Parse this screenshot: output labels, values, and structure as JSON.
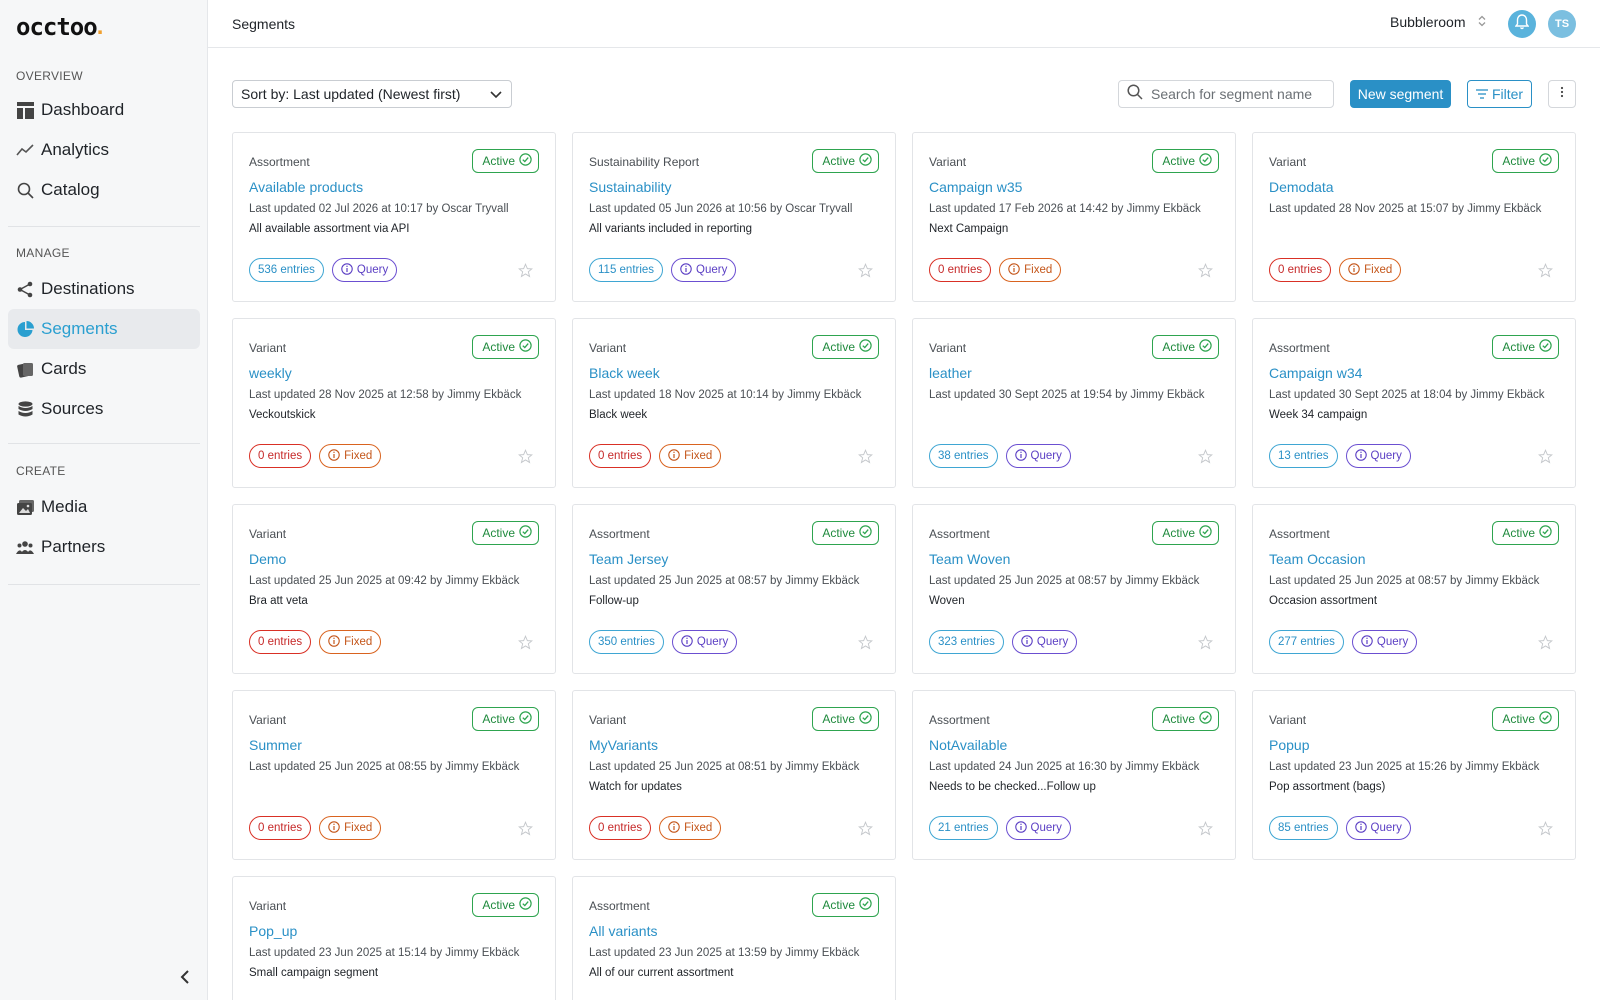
{
  "sidebar": {
    "logo_text": "occtoo",
    "sections": [
      {
        "heading": "OVERVIEW",
        "items": [
          {
            "label": "Dashboard",
            "icon": "dashboard-icon"
          },
          {
            "label": "Analytics",
            "icon": "analytics-icon"
          },
          {
            "label": "Catalog",
            "icon": "search-icon"
          }
        ]
      },
      {
        "heading": "MANAGE",
        "items": [
          {
            "label": "Destinations",
            "icon": "share-icon"
          },
          {
            "label": "Segments",
            "icon": "pie-chart-icon",
            "active": true
          },
          {
            "label": "Cards",
            "icon": "cards-icon"
          },
          {
            "label": "Sources",
            "icon": "database-icon"
          }
        ]
      },
      {
        "heading": "CREATE",
        "items": [
          {
            "label": "Media",
            "icon": "image-icon"
          },
          {
            "label": "Partners",
            "icon": "people-icon"
          }
        ]
      }
    ]
  },
  "header": {
    "title": "Segments",
    "org": "Bubbleroom",
    "avatar_initials": "TS"
  },
  "toolbar": {
    "sort_label": "Sort by: Last updated (Newest first)",
    "search_placeholder": "Search for segment name",
    "new_label": "New segment",
    "filter_label": "Filter"
  },
  "colors": {
    "accent": "#2a90c6",
    "active_green": "#2ea44f",
    "fixed_orange": "#d9631f",
    "query_purple": "#6b4fd1",
    "zero_red": "#d93025"
  },
  "segments": [
    {
      "type": "Assortment",
      "status": "Active",
      "name": "Available products",
      "updated": "Last updated 02 Jul 2026 at 10:17 by Oscar Tryvall",
      "description": "All available assortment via API",
      "entries": "536 entries",
      "kind": "Query"
    },
    {
      "type": "Sustainability Report",
      "status": "Active",
      "name": "Sustainability",
      "updated": "Last updated 05 Jun 2026 at 10:56 by Oscar Tryvall",
      "description": "All variants included in reporting",
      "entries": "115 entries",
      "kind": "Query"
    },
    {
      "type": "Variant",
      "status": "Active",
      "name": "Campaign w35",
      "updated": "Last updated 17 Feb 2026 at 14:42 by Jimmy Ekbäck",
      "description": "Next Campaign",
      "entries": "0 entries",
      "kind": "Fixed"
    },
    {
      "type": "Variant",
      "status": "Active",
      "name": "Demodata",
      "updated": "Last updated 28 Nov 2025 at 15:07 by Jimmy Ekbäck",
      "description": "",
      "entries": "0 entries",
      "kind": "Fixed"
    },
    {
      "type": "Variant",
      "status": "Active",
      "name": "weekly",
      "updated": "Last updated 28 Nov 2025 at 12:58 by Jimmy Ekbäck",
      "description": "Veckoutskick",
      "entries": "0 entries",
      "kind": "Fixed"
    },
    {
      "type": "Variant",
      "status": "Active",
      "name": "Black week",
      "updated": "Last updated 18 Nov 2025 at 10:14 by Jimmy Ekbäck",
      "description": "Black week",
      "entries": "0 entries",
      "kind": "Fixed"
    },
    {
      "type": "Variant",
      "status": "Active",
      "name": "leather",
      "updated": "Last updated 30 Sept 2025 at 19:54 by Jimmy Ekbäck",
      "description": "",
      "entries": "38 entries",
      "kind": "Query"
    },
    {
      "type": "Assortment",
      "status": "Active",
      "name": "Campaign w34",
      "updated": "Last updated 30 Sept 2025 at 18:04 by Jimmy Ekbäck",
      "description": "Week 34 campaign",
      "entries": "13 entries",
      "kind": "Query"
    },
    {
      "type": "Variant",
      "status": "Active",
      "name": "Demo",
      "updated": "Last updated 25 Jun 2025 at 09:42 by Jimmy Ekbäck",
      "description": "Bra att veta",
      "entries": "0 entries",
      "kind": "Fixed"
    },
    {
      "type": "Assortment",
      "status": "Active",
      "name": "Team Jersey",
      "updated": "Last updated 25 Jun 2025 at 08:57 by Jimmy Ekbäck",
      "description": "Follow-up",
      "entries": "350 entries",
      "kind": "Query"
    },
    {
      "type": "Assortment",
      "status": "Active",
      "name": "Team Woven",
      "updated": "Last updated 25 Jun 2025 at 08:57 by Jimmy Ekbäck",
      "description": "Woven",
      "entries": "323 entries",
      "kind": "Query"
    },
    {
      "type": "Assortment",
      "status": "Active",
      "name": "Team Occasion",
      "updated": "Last updated 25 Jun 2025 at 08:57 by Jimmy Ekbäck",
      "description": "Occasion assortment",
      "entries": "277 entries",
      "kind": "Query"
    },
    {
      "type": "Variant",
      "status": "Active",
      "name": "Summer",
      "updated": "Last updated 25 Jun 2025 at 08:55 by Jimmy Ekbäck",
      "description": "",
      "entries": "0 entries",
      "kind": "Fixed"
    },
    {
      "type": "Variant",
      "status": "Active",
      "name": "MyVariants",
      "updated": "Last updated 25 Jun 2025 at 08:51 by Jimmy Ekbäck",
      "description": "Watch for updates",
      "entries": "0 entries",
      "kind": "Fixed"
    },
    {
      "type": "Assortment",
      "status": "Active",
      "name": "NotAvailable",
      "updated": "Last updated 24 Jun 2025 at 16:30 by Jimmy Ekbäck",
      "description": "Needs to be checked...Follow up",
      "entries": "21 entries",
      "kind": "Query"
    },
    {
      "type": "Variant",
      "status": "Active",
      "name": "Popup",
      "updated": "Last updated 23 Jun 2025 at 15:26 by Jimmy Ekbäck",
      "description": "Pop assortment (bags)",
      "entries": "85 entries",
      "kind": "Query"
    },
    {
      "type": "Variant",
      "status": "Active",
      "name": "Pop_up",
      "updated": "Last updated 23 Jun 2025 at 15:14 by Jimmy Ekbäck",
      "description": "Small campaign segment",
      "entries": "",
      "kind": ""
    },
    {
      "type": "Assortment",
      "status": "Active",
      "name": "All variants",
      "updated": "Last updated 23 Jun 2025 at 13:59 by Jimmy Ekbäck",
      "description": "All of our current assortment",
      "entries": "",
      "kind": ""
    }
  ]
}
